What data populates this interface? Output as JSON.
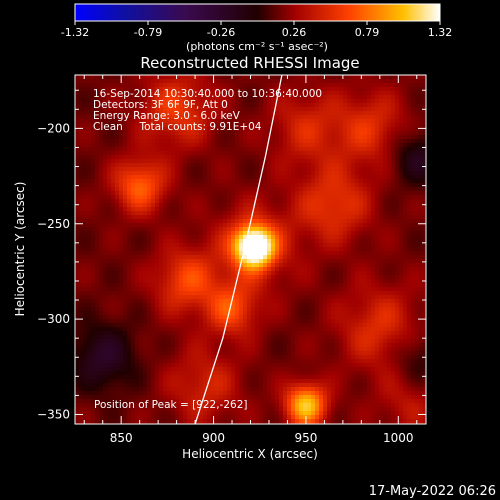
{
  "chart_data": {
    "type": "heatmap",
    "title": "Reconstructed RHESSI Image",
    "xlabel": "Heliocentric X (arcsec)",
    "ylabel": "Heliocentric Y (arcsec)",
    "xlim": [
      825,
      1015
    ],
    "ylim": [
      -355,
      -172
    ],
    "xticks": [
      850,
      900,
      950,
      1000
    ],
    "yticks": [
      -200,
      -250,
      -300,
      -350
    ],
    "info_lines": [
      "16-Sep-2014 10:30:40.000 to 10:36:40.000",
      "Detectors: 3F 6F 9F, Att 0",
      "Energy Range: 3.0 - 6.0 keV",
      "Clean     Total counts: 9.91E+04"
    ],
    "peak_label": "Position of Peak = [922,-262]",
    "peak": {
      "x": 922,
      "y": -262
    },
    "colorbar": {
      "min": -1.32,
      "max": 1.32,
      "ticks": [
        "-1.32",
        "-0.79",
        "-0.26",
        "0.26",
        "0.79",
        "1.32"
      ],
      "unit_label": "(photons cm⁻² s⁻¹ asec⁻²)"
    },
    "limb_curve": [
      [
        890,
        -355
      ],
      [
        905,
        -310
      ],
      [
        917,
        -262
      ],
      [
        928,
        -215
      ],
      [
        937,
        -172
      ]
    ],
    "sources": [
      {
        "x": 922,
        "y": -262,
        "v": 1.32,
        "s": 7
      },
      {
        "x": 922,
        "y": -262,
        "v": 0.35,
        "s": 16
      },
      {
        "x": 910,
        "y": -295,
        "v": 0.45,
        "s": 10
      },
      {
        "x": 950,
        "y": -345,
        "v": 0.85,
        "s": 8
      },
      {
        "x": 860,
        "y": -230,
        "v": 0.55,
        "s": 10
      },
      {
        "x": 885,
        "y": -280,
        "v": 0.45,
        "s": 12
      },
      {
        "x": 965,
        "y": -240,
        "v": 0.4,
        "s": 14
      },
      {
        "x": 985,
        "y": -200,
        "v": 0.35,
        "s": 14
      },
      {
        "x": 950,
        "y": -200,
        "v": 0.3,
        "s": 14
      },
      {
        "x": 880,
        "y": -190,
        "v": 0.4,
        "s": 14
      },
      {
        "x": 990,
        "y": -305,
        "v": 0.35,
        "s": 16
      },
      {
        "x": 895,
        "y": -335,
        "v": 0.3,
        "s": 14
      },
      {
        "x": 1005,
        "y": -345,
        "v": 0.2,
        "s": 12
      },
      {
        "x": 840,
        "y": -320,
        "v": -0.4,
        "s": 12
      },
      {
        "x": 1010,
        "y": -215,
        "v": -0.35,
        "s": 10
      },
      {
        "x": 1010,
        "y": -320,
        "v": -0.25,
        "s": 10
      }
    ]
  },
  "footer": {
    "date": "17-May-2022 06:26"
  }
}
